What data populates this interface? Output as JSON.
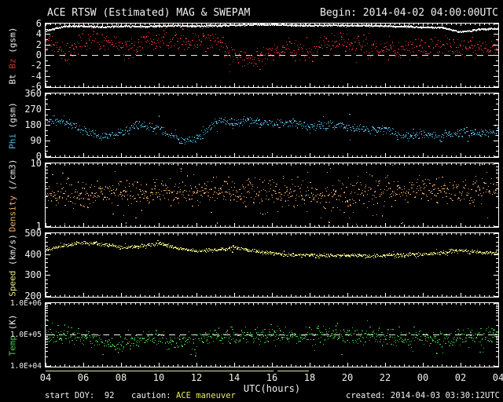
{
  "header": {
    "title": "ACE RTSW (Estimated) MAG & SWEPAM",
    "begin_label": "Begin: 2014-04-02 04:00:00UTC"
  },
  "footer": {
    "start_doy": "start DOY:  92",
    "caution_label": "caution:",
    "caution_value": "ACE maneuver",
    "created": "created: 2014-04-03 03:30:12UTC"
  },
  "x_axis": {
    "label": "UTC(hours)",
    "tick_labels": [
      "04",
      "06",
      "08",
      "10",
      "12",
      "14",
      "16",
      "18",
      "20",
      "22",
      "00",
      "02",
      "04"
    ],
    "start_hour": 4,
    "span_hours": 24
  },
  "colors": {
    "background": "#000000",
    "frame": "#ffffff",
    "text": "#f0f0f0",
    "bt": "#ebebeb",
    "bz": "#dd3333",
    "phi": "#55b8e0",
    "density": "#eeaa66",
    "speed": "#e8e87d",
    "temp": "#44cc44",
    "caution_line": "#e6e69a",
    "caution_text": "#e8e860",
    "dashed": "#f0f0f0"
  },
  "caution_line": {
    "segments_hours": [
      [
        4.0,
        16.1
      ],
      [
        16.3,
        17.95
      ]
    ]
  },
  "chart_data": [
    {
      "id": "bt-bz",
      "type": "scatter",
      "scale": "linear",
      "ylabel_parts": [
        {
          "text": "Bt ",
          "color": "#ebebeb"
        },
        {
          "text": "Bz",
          "color": "#cc3333"
        },
        {
          "text": " (gsm)",
          "color": "#ebebeb"
        }
      ],
      "ylim": [
        -6,
        6
      ],
      "minor_step": 1,
      "dashed_at": 0,
      "yticks": [
        {
          "v": 6,
          "label": "6"
        },
        {
          "v": 4,
          "label": "4"
        },
        {
          "v": 2,
          "label": "2"
        },
        {
          "v": 0,
          "label": "0"
        },
        {
          "v": -2,
          "label": "-2"
        },
        {
          "v": -4,
          "label": "-4"
        },
        {
          "v": -6,
          "label": "-6"
        }
      ],
      "series": [
        {
          "name": "Bt",
          "color": "#ebebeb",
          "style": "dense",
          "noise": 0.07,
          "n": 1150,
          "outlier_prob": 0,
          "outlier_mag": 0,
          "hourly": [
            4.6,
            5.5,
            5.5,
            5.3,
            5.5,
            5.4,
            5.5,
            5.6,
            5.5,
            5.6,
            5.7,
            5.8,
            5.8,
            5.7,
            5.6,
            5.7,
            5.6,
            5.6,
            5.5,
            5.4,
            5.3,
            5.2,
            4.4,
            4.9,
            5.0
          ]
        },
        {
          "name": "Bz",
          "color": "#dd3333",
          "style": "scatter",
          "noise": 1.0,
          "n": 760,
          "outlier_prob": 0.02,
          "outlier_mag": 2.2,
          "hourly": [
            3.2,
            0.0,
            3.3,
            2.8,
            1.6,
            2.2,
            3.0,
            3.0,
            2.5,
            2.8,
            -0.5,
            -0.5,
            0.3,
            1.5,
            0.5,
            2.3,
            2.5,
            1.5,
            1.0,
            1.0,
            1.5,
            2.0,
            1.0,
            1.5,
            1.0
          ]
        }
      ]
    },
    {
      "id": "phi",
      "type": "scatter",
      "scale": "linear",
      "ylabel_parts": [
        {
          "text": "Phi",
          "color": "#55b8e0"
        },
        {
          "text": " (gsm)",
          "color": "#ebebeb"
        }
      ],
      "ylim": [
        0,
        360
      ],
      "minor_step": 30,
      "dashed_at": null,
      "yticks": [
        {
          "v": 360,
          "label": "360"
        },
        {
          "v": 270,
          "label": "270"
        },
        {
          "v": 180,
          "label": "180"
        },
        {
          "v": 90,
          "label": "90"
        },
        {
          "v": 0,
          "label": "0"
        }
      ],
      "series": [
        {
          "name": "Phi",
          "color": "#55b8e0",
          "style": "scatter",
          "noise": 13,
          "n": 780,
          "outlier_prob": 0.015,
          "outlier_mag": 45,
          "hourly": [
            208,
            205,
            150,
            115,
            140,
            185,
            160,
            100,
            95,
            205,
            195,
            205,
            190,
            195,
            165,
            185,
            170,
            150,
            155,
            120,
            125,
            115,
            140,
            135,
            150
          ]
        }
      ]
    },
    {
      "id": "density",
      "type": "scatter",
      "scale": "log",
      "ylabel_parts": [
        {
          "text": "Density",
          "color": "#eeaa66"
        },
        {
          "text": " (/cm3)",
          "color": "#ebebeb"
        }
      ],
      "ylim": [
        1,
        10
      ],
      "minor_step": null,
      "dashed_at": null,
      "yticks": [
        {
          "v": 10,
          "label": "10"
        },
        {
          "v": 1,
          "label": "1"
        }
      ],
      "series": [
        {
          "name": "Density",
          "color": "#eeaa66",
          "style": "scatter",
          "noise": 0.1,
          "n": 900,
          "outlier_prob": 0.12,
          "outlier_mag": 0.3,
          "hourly": [
            3.0,
            3.1,
            3.0,
            3.3,
            3.4,
            3.2,
            3.6,
            3.4,
            3.5,
            3.7,
            3.5,
            3.3,
            3.6,
            3.4,
            3.1,
            3.0,
            3.1,
            3.4,
            3.7,
            3.6,
            4.0,
            3.9,
            3.5,
            3.9,
            4.1
          ]
        }
      ]
    },
    {
      "id": "speed",
      "type": "scatter",
      "scale": "linear",
      "ylabel_parts": [
        {
          "text": "Speed",
          "color": "#e8e87d"
        },
        {
          "text": " (km/s)",
          "color": "#ebebeb"
        }
      ],
      "ylim": [
        200,
        500
      ],
      "minor_step": 20,
      "dashed_at": null,
      "yticks": [
        {
          "v": 500,
          "label": "500"
        },
        {
          "v": 400,
          "label": "400"
        },
        {
          "v": 300,
          "label": "300"
        },
        {
          "v": 200,
          "label": "200"
        }
      ],
      "series": [
        {
          "name": "Speed",
          "color": "#e8e87d",
          "style": "scatter",
          "noise": 4.5,
          "n": 920,
          "outlier_prob": 0.02,
          "outlier_mag": 14,
          "hourly": [
            420,
            442,
            455,
            448,
            432,
            440,
            452,
            430,
            415,
            420,
            432,
            415,
            405,
            398,
            396,
            394,
            393,
            392,
            394,
            396,
            400,
            408,
            420,
            410,
            405
          ]
        }
      ]
    },
    {
      "id": "temp",
      "type": "scatter",
      "scale": "log",
      "ylabel_parts": [
        {
          "text": "Temp",
          "color": "#44cc44"
        },
        {
          "text": " (K)",
          "color": "#ebebeb"
        }
      ],
      "ylim": [
        10000,
        1000000
      ],
      "minor_step": null,
      "dashed_at": 100000,
      "yticks": [
        {
          "v": 1000000,
          "label": "1.0E+06"
        },
        {
          "v": 100000,
          "label": "1.0E+05"
        },
        {
          "v": 10000,
          "label": "1.0E+04"
        }
      ],
      "series": [
        {
          "name": "Temp",
          "color": "#44cc44",
          "style": "scatter",
          "noise": 0.13,
          "n": 860,
          "outlier_prob": 0.08,
          "outlier_mag": 0.28,
          "hourly": [
            100000,
            105000,
            80000,
            55000,
            50000,
            75000,
            85000,
            55000,
            70000,
            100000,
            85000,
            95000,
            105000,
            90000,
            100000,
            100000,
            95000,
            90000,
            85000,
            80000,
            85000,
            80000,
            80000,
            90000,
            100000
          ]
        }
      ]
    }
  ]
}
